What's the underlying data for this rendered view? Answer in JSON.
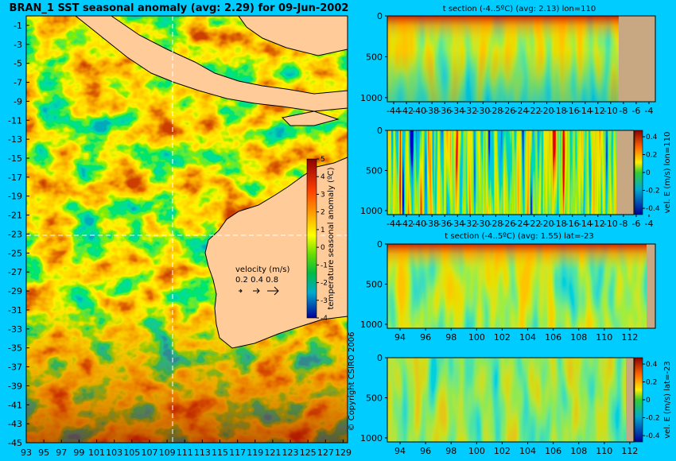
{
  "main_title": "BRAN_1 SST seasonal anomaly (avg: 2.29) for 09-Jun-2002",
  "copyright": "© Copyright CSIRO 2006",
  "map": {
    "lon_labels": [
      "93",
      "95",
      "97",
      "99",
      "101",
      "103",
      "105",
      "107",
      "109",
      "111",
      "113",
      "115",
      "117",
      "119",
      "121",
      "123",
      "125",
      "127",
      "129"
    ],
    "lat_labels": [
      "-1",
      "-3",
      "-5",
      "-7",
      "-9",
      "-11",
      "-13",
      "-15",
      "-17",
      "-19",
      "-21",
      "-23",
      "-25",
      "-27",
      "-29",
      "-31",
      "-33",
      "-35",
      "-37",
      "-39",
      "-41",
      "-43",
      "-45"
    ],
    "colorbar_label": "temperature seasonal anomaly (ºC)",
    "colorbar_ticks": [
      "5",
      "4",
      "3",
      "2",
      "1",
      "0",
      "-1",
      "-2",
      "-3",
      "-4"
    ],
    "velocity_title": "velocity (m/s)",
    "velocity_values": "0.2 0.4 0.8",
    "crosshair_lon": 110,
    "crosshair_lat": -23
  },
  "panels": [
    {
      "title": "t section (-4..5ºC) (avg: 2.13) lon=110",
      "x_labels": [
        "-44",
        "-42",
        "-40",
        "-38",
        "-36",
        "-34",
        "-32",
        "-30",
        "-28",
        "-26",
        "-24",
        "-22",
        "-20",
        "-18",
        "-16",
        "-14",
        "-12",
        "-10",
        "-8",
        "-6",
        "-4"
      ],
      "y_labels": [
        "0",
        "500",
        "1000"
      ]
    },
    {
      "title": "",
      "x_labels": [
        "-44",
        "-42",
        "-40",
        "-38",
        "-36",
        "-34",
        "-32",
        "-30",
        "-28",
        "-26",
        "-24",
        "-22",
        "-20",
        "-18",
        "-16",
        "-14",
        "-12",
        "-10",
        "-8",
        "-6",
        "-4"
      ],
      "y_labels": [
        "0",
        "500",
        "1000"
      ],
      "colorbar_ticks": [
        "0.4",
        "0.2",
        "0",
        "-0.2",
        "-0.4"
      ],
      "colorbar_label": "vel. E (m/s) lon=110"
    },
    {
      "title": "t section (-4..5ºC) (avg: 1.55) lat=-23",
      "x_labels": [
        "94",
        "96",
        "98",
        "100",
        "102",
        "104",
        "106",
        "108",
        "110",
        "112"
      ],
      "y_labels": [
        "0",
        "500",
        "1000"
      ]
    },
    {
      "title": "",
      "x_labels": [
        "94",
        "96",
        "98",
        "100",
        "102",
        "104",
        "106",
        "108",
        "110",
        "112"
      ],
      "y_labels": [
        "0",
        "500",
        "1000"
      ],
      "colorbar_ticks": [
        "0.4",
        "0.2",
        "0",
        "-0.2",
        "-0.4"
      ],
      "colorbar_label": "vel. E (m/s) lat=-23"
    }
  ],
  "colors": {
    "background": "#00ccff",
    "land": "#ffcc99",
    "bottom": "#c8a882"
  },
  "chart_data": [
    {
      "type": "heatmap",
      "title": "BRAN_1 SST seasonal anomaly (avg: 2.29) for 09-Jun-2002",
      "xlim": [
        93,
        129.5
      ],
      "ylim": [
        -45,
        0
      ],
      "colorbar_range": [
        -4,
        5
      ],
      "colorbar_label": "temperature seasonal anomaly (ºC)",
      "average": 2.29
    },
    {
      "type": "heatmap",
      "title": "t section (-4..5ºC) (avg: 2.13) lon=110",
      "xlim": [
        -45,
        -3
      ],
      "ylim": [
        1050,
        0
      ],
      "average": 2.13
    },
    {
      "type": "heatmap",
      "xlim": [
        -45,
        -3
      ],
      "ylim": [
        1050,
        0
      ],
      "colorbar_range": [
        -0.4,
        0.4
      ],
      "colorbar_label": "vel. E (m/s) lon=110"
    },
    {
      "type": "heatmap",
      "title": "t section (-4..5ºC) (avg: 1.55) lat=-23",
      "xlim": [
        93,
        114
      ],
      "ylim": [
        1050,
        0
      ],
      "average": 1.55
    },
    {
      "type": "heatmap",
      "xlim": [
        93,
        114
      ],
      "ylim": [
        1050,
        0
      ],
      "colorbar_range": [
        -0.4,
        0.4
      ],
      "colorbar_label": "vel. E (m/s) lat=-23"
    }
  ]
}
